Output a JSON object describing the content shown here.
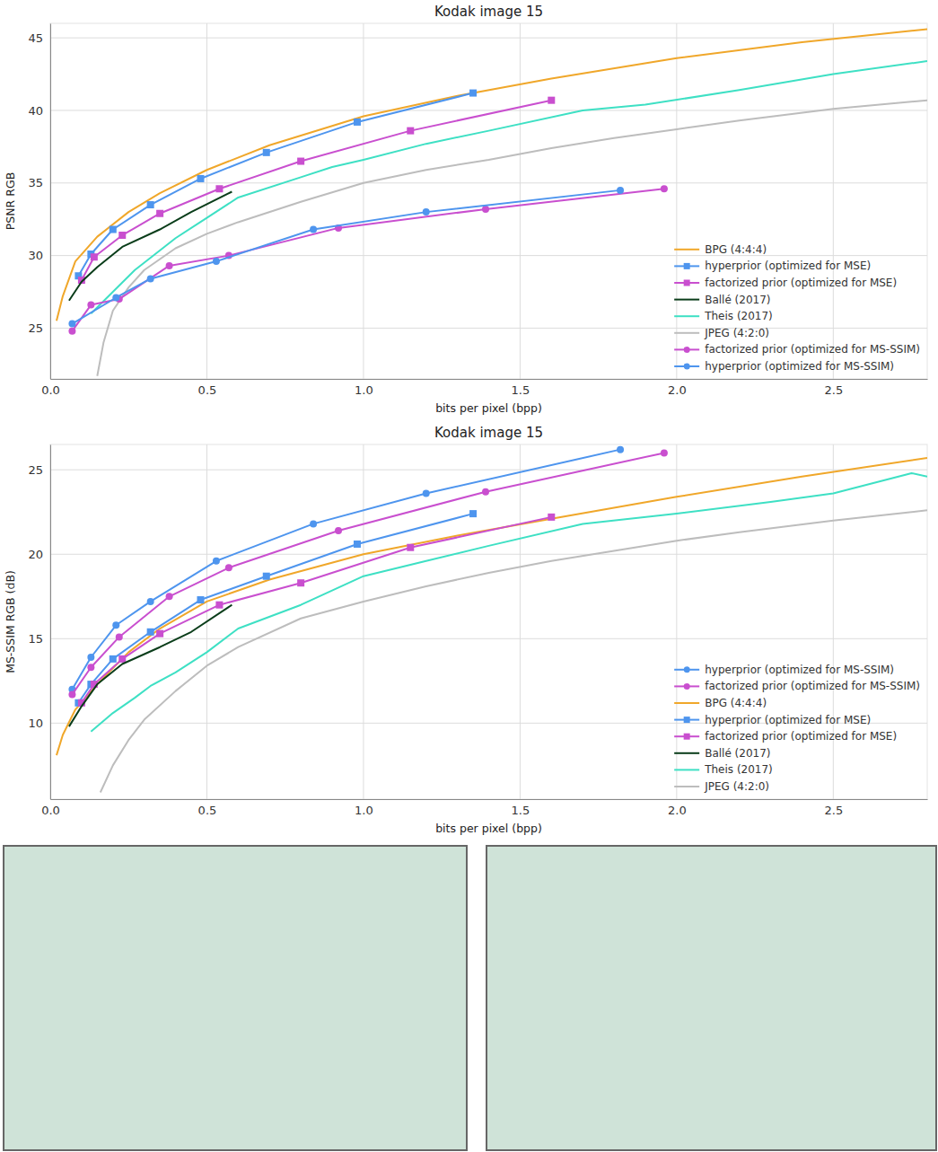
{
  "chart_data": [
    {
      "type": "line",
      "title": "Kodak image 15",
      "x_label": "bits per pixel (bpp)",
      "y_label": "PSNR RGB",
      "xlim": [
        0,
        2.8
      ],
      "xticks": [
        {
          "value": 0,
          "label": "0.0"
        },
        0.5,
        {
          "value": 1,
          "label": "1.0"
        },
        1.5,
        {
          "value": 2,
          "label": "2.0"
        },
        2.5
      ],
      "ylim": [
        21.5,
        46
      ],
      "yticks": [
        25,
        30,
        35,
        40,
        45
      ],
      "grid": true,
      "legend": "lower right",
      "series": [
        {
          "name": "BPG (4:4:4)",
          "color": "#f0a72a",
          "x": [
            0.02,
            0.04,
            0.08,
            0.15,
            0.25,
            0.35,
            0.5,
            0.7,
            1.0,
            1.3,
            1.6,
            2.0,
            2.4,
            2.8
          ],
          "values": [
            25.5,
            27.2,
            29.6,
            31.3,
            33.0,
            34.3,
            35.9,
            37.6,
            39.6,
            41.0,
            42.2,
            43.6,
            44.7,
            45.6
          ]
        },
        {
          "name": "hyperprior (optimized for MSE)",
          "color": "#4e95ee",
          "marker": "square",
          "x": [
            0.09,
            0.13,
            0.2,
            0.32,
            0.48,
            0.69,
            0.98,
            1.35
          ],
          "values": [
            28.6,
            30.1,
            31.8,
            33.5,
            35.3,
            37.1,
            39.2,
            41.2
          ]
        },
        {
          "name": "factorized prior (optimized for MSE)",
          "color": "#c94fcf",
          "marker": "square",
          "x": [
            0.1,
            0.14,
            0.23,
            0.35,
            0.54,
            0.8,
            1.15,
            1.6
          ],
          "values": [
            28.3,
            29.9,
            31.4,
            32.9,
            34.6,
            36.5,
            38.6,
            40.7
          ]
        },
        {
          "name": "Ballé (2017)",
          "color": "#0a3d1a",
          "x": [
            0.06,
            0.1,
            0.15,
            0.23,
            0.35,
            0.45,
            0.58
          ],
          "values": [
            26.9,
            28.2,
            29.2,
            30.6,
            31.8,
            33.0,
            34.4
          ]
        },
        {
          "name": "Theis (2017)",
          "color": "#3ee0c4",
          "x": [
            0.13,
            0.2,
            0.27,
            0.4,
            0.5,
            0.6,
            0.8,
            0.9,
            1.0,
            1.2,
            1.4,
            1.7,
            1.9,
            2.2,
            2.5,
            2.8
          ],
          "values": [
            26.0,
            27.5,
            29.0,
            31.2,
            32.6,
            34.0,
            35.4,
            36.1,
            36.6,
            37.7,
            38.6,
            40.0,
            40.4,
            41.4,
            42.5,
            43.4
          ]
        },
        {
          "name": "JPEG (4:2:0)",
          "color": "#bdbdbd",
          "x": [
            0.15,
            0.17,
            0.2,
            0.25,
            0.3,
            0.4,
            0.5,
            0.6,
            0.8,
            1.0,
            1.2,
            1.4,
            1.6,
            1.8,
            2.0,
            2.2,
            2.5,
            2.8
          ],
          "values": [
            21.7,
            24.0,
            26.2,
            27.8,
            29.0,
            30.5,
            31.5,
            32.3,
            33.7,
            35.0,
            35.9,
            36.6,
            37.4,
            38.1,
            38.7,
            39.3,
            40.1,
            40.7
          ]
        },
        {
          "name": "factorized prior (optimized for MS-SSIM)",
          "color": "#c94fcf",
          "marker": "circle",
          "x": [
            0.07,
            0.13,
            0.22,
            0.38,
            0.57,
            0.92,
            1.39,
            1.96
          ],
          "values": [
            24.8,
            26.6,
            27.0,
            29.3,
            30.0,
            31.9,
            33.2,
            34.6
          ]
        },
        {
          "name": "hyperprior (optimized for MS-SSIM)",
          "color": "#4e95ee",
          "marker": "circle",
          "x": [
            0.07,
            0.21,
            0.32,
            0.53,
            0.84,
            1.2,
            1.82
          ],
          "values": [
            25.3,
            27.1,
            28.4,
            29.6,
            31.8,
            33.0,
            34.5
          ]
        }
      ]
    },
    {
      "type": "line",
      "title": "Kodak image 15",
      "x_label": "bits per pixel (bpp)",
      "y_label": "MS-SSIM RGB (dB)",
      "xlim": [
        0,
        2.8
      ],
      "xticks": [
        {
          "value": 0,
          "label": "0.0"
        },
        0.5,
        {
          "value": 1,
          "label": "1.0"
        },
        1.5,
        {
          "value": 2,
          "label": "2.0"
        },
        2.5
      ],
      "ylim": [
        5.5,
        26.5
      ],
      "yticks": [
        10,
        15,
        20,
        25
      ],
      "grid": true,
      "legend": "lower right",
      "series": [
        {
          "name": "hyperprior (optimized for MS-SSIM)",
          "color": "#4e95ee",
          "marker": "circle",
          "x": [
            0.07,
            0.13,
            0.21,
            0.32,
            0.53,
            0.84,
            1.2,
            1.82
          ],
          "values": [
            12.0,
            13.9,
            15.8,
            17.2,
            19.6,
            21.8,
            23.6,
            26.2
          ]
        },
        {
          "name": "factorized prior (optimized for MS-SSIM)",
          "color": "#c94fcf",
          "marker": "circle",
          "x": [
            0.07,
            0.13,
            0.22,
            0.38,
            0.57,
            0.92,
            1.39,
            1.96
          ],
          "values": [
            11.7,
            13.3,
            15.1,
            17.5,
            19.2,
            21.4,
            23.7,
            26.0
          ]
        },
        {
          "name": "BPG (4:4:4)",
          "color": "#f0a72a",
          "x": [
            0.02,
            0.04,
            0.08,
            0.15,
            0.25,
            0.35,
            0.5,
            0.7,
            1.0,
            1.3,
            1.6,
            2.0,
            2.4,
            2.8
          ],
          "values": [
            8.1,
            9.3,
            10.8,
            12.3,
            14.2,
            15.6,
            17.2,
            18.5,
            20.0,
            21.1,
            22.1,
            23.4,
            24.6,
            25.7
          ]
        },
        {
          "name": "hyperprior (optimized for MSE)",
          "color": "#4e95ee",
          "marker": "square",
          "x": [
            0.09,
            0.13,
            0.2,
            0.32,
            0.48,
            0.69,
            0.98,
            1.35
          ],
          "values": [
            11.2,
            12.3,
            13.8,
            15.4,
            17.3,
            18.7,
            20.6,
            22.4
          ]
        },
        {
          "name": "factorized prior (optimized for MSE)",
          "color": "#c94fcf",
          "marker": "square",
          "x": [
            0.1,
            0.14,
            0.23,
            0.35,
            0.54,
            0.8,
            1.15,
            1.6
          ],
          "values": [
            11.2,
            12.3,
            13.8,
            15.3,
            17.0,
            18.3,
            20.4,
            22.2
          ]
        },
        {
          "name": "Ballé (2017)",
          "color": "#0a3d1a",
          "x": [
            0.06,
            0.1,
            0.15,
            0.23,
            0.35,
            0.45,
            0.58
          ],
          "values": [
            9.8,
            11.0,
            12.3,
            13.5,
            14.5,
            15.4,
            17.0
          ]
        },
        {
          "name": "Theis (2017)",
          "color": "#3ee0c4",
          "x": [
            0.13,
            0.2,
            0.27,
            0.32,
            0.4,
            0.5,
            0.6,
            0.8,
            1.0,
            1.2,
            1.4,
            1.7,
            2.0,
            2.3,
            2.5,
            2.75,
            2.8
          ],
          "values": [
            9.5,
            10.6,
            11.5,
            12.2,
            13.0,
            14.2,
            15.6,
            17.0,
            18.7,
            19.6,
            20.5,
            21.8,
            22.4,
            23.1,
            23.6,
            24.8,
            24.6
          ]
        },
        {
          "name": "JPEG (4:2:0)",
          "color": "#bdbdbd",
          "x": [
            0.16,
            0.2,
            0.25,
            0.3,
            0.4,
            0.5,
            0.6,
            0.8,
            1.0,
            1.2,
            1.4,
            1.6,
            1.8,
            2.0,
            2.2,
            2.5,
            2.8
          ],
          "values": [
            5.9,
            7.5,
            9.0,
            10.2,
            11.9,
            13.4,
            14.5,
            16.2,
            17.2,
            18.1,
            18.9,
            19.6,
            20.2,
            20.8,
            21.3,
            22.0,
            22.6
          ]
        }
      ]
    }
  ]
}
